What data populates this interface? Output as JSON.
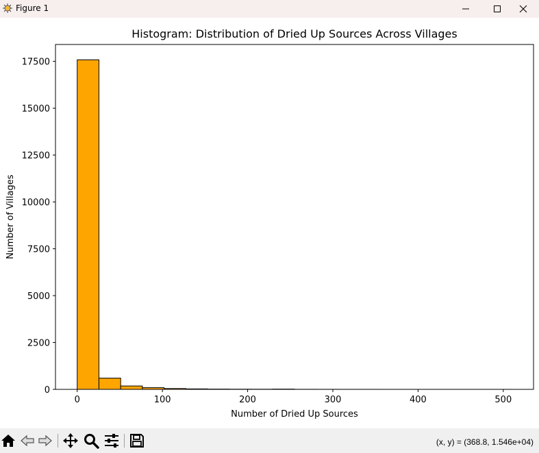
{
  "window": {
    "title": "Figure 1",
    "icons": [
      "app-icon",
      "minimize-icon",
      "maximize-icon",
      "close-icon"
    ]
  },
  "toolbar": {
    "icons": [
      "home-icon",
      "back-arrow-icon",
      "forward-arrow-icon",
      "pan-move-icon",
      "zoom-magnifier-icon",
      "configure-subplots-icon",
      "save-floppy-icon"
    ],
    "coords_text": "(x, y) = (368.8, 1.546e+04)"
  },
  "chart_data": {
    "type": "bar",
    "title": "Histogram: Distribution of Dried Up Sources Across Villages",
    "xlabel": "Number of Dried Up Sources",
    "ylabel": "Number of Villages",
    "xlim": [
      -25.5,
      535.5
    ],
    "ylim": [
      0,
      18400
    ],
    "xticks": [
      0,
      100,
      200,
      300,
      400,
      500
    ],
    "yticks": [
      0,
      2500,
      5000,
      7500,
      10000,
      12500,
      15000,
      17500
    ],
    "bin_edges": [
      0,
      25.5,
      51,
      76.5,
      102,
      127.5,
      153,
      178.5,
      204,
      229.5,
      255,
      280.5,
      306,
      331.5,
      357,
      382.5,
      408,
      433.5,
      459,
      484.5,
      510
    ],
    "values": [
      17580,
      600,
      180,
      90,
      45,
      25,
      15,
      10,
      8,
      15,
      4,
      3,
      2,
      2,
      1,
      1,
      1,
      1,
      1,
      1
    ],
    "bar_color": "#ffa500",
    "edge_color": "#000000",
    "grid": false
  }
}
